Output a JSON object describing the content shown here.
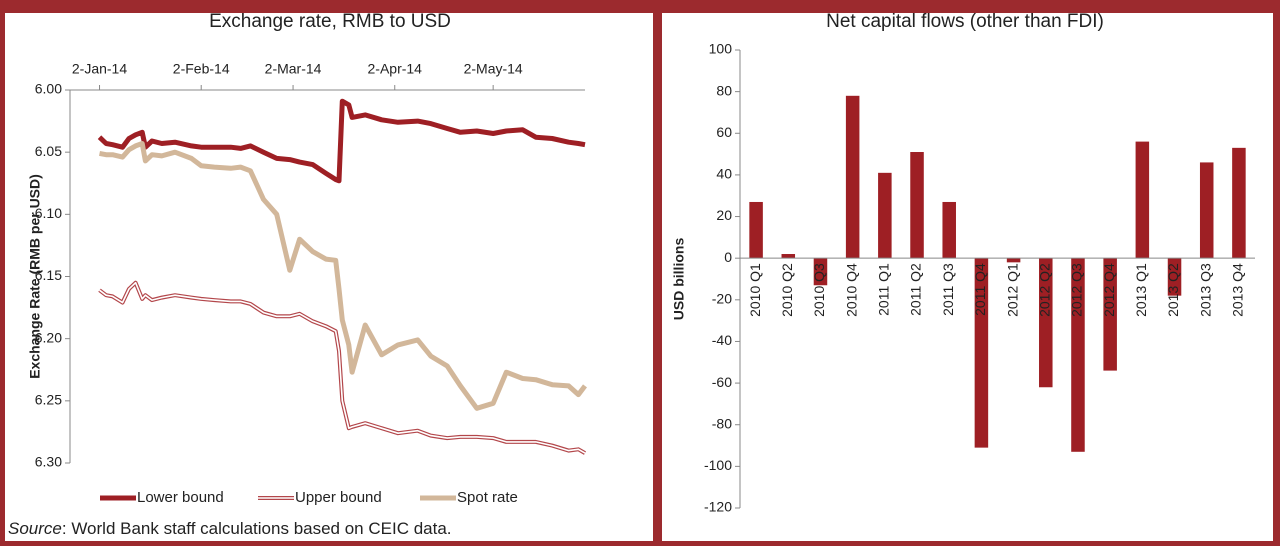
{
  "chart_data": [
    {
      "type": "line",
      "title": "Exchange rate, RMB to USD",
      "y_label": "Exchange Rate (RMB per USD)",
      "x": [
        "2014-01-02",
        "2014-01-04",
        "2014-01-06",
        "2014-01-09",
        "2014-01-11",
        "2014-01-13",
        "2014-01-15",
        "2014-01-16",
        "2014-01-18",
        "2014-01-21",
        "2014-01-25",
        "2014-01-30",
        "2014-02-02",
        "2014-02-06",
        "2014-02-11",
        "2014-02-14",
        "2014-02-17",
        "2014-02-21",
        "2014-02-25",
        "2014-03-01",
        "2014-03-04",
        "2014-03-08",
        "2014-03-12",
        "2014-03-15",
        "2014-03-16",
        "2014-03-17",
        "2014-03-19",
        "2014-03-20",
        "2014-03-24",
        "2014-03-29",
        "2014-04-03",
        "2014-04-09",
        "2014-04-13",
        "2014-04-18",
        "2014-04-22",
        "2014-04-27",
        "2014-05-02",
        "2014-05-06",
        "2014-05-11",
        "2014-05-15",
        "2014-05-20",
        "2014-05-25",
        "2014-05-28",
        "2014-05-30"
      ],
      "xlim": [
        "2013-12-24",
        "2014-05-30"
      ],
      "xticks": [
        {
          "value": "2014-01-02",
          "label": "2-Jan-14"
        },
        {
          "value": "2014-02-02",
          "label": "2-Feb-14"
        },
        {
          "value": "2014-03-02",
          "label": "2-Mar-14"
        },
        {
          "value": "2014-04-02",
          "label": "2-Apr-14"
        },
        {
          "value": "2014-05-02",
          "label": "2-May-14"
        }
      ],
      "x_axis_position": "top",
      "ylim": [
        6.0,
        6.3
      ],
      "y_inverted": true,
      "yticks": [
        {
          "value": 6,
          "label": "6.00"
        },
        6.05,
        {
          "value": 6.1,
          "label": "6.10"
        },
        6.15,
        {
          "value": 6.2,
          "label": "6.20"
        },
        6.25,
        {
          "value": 6.3,
          "label": "6.30"
        }
      ],
      "legend": "bottom",
      "series": [
        {
          "name": "Lower bound",
          "color": "#9e1f24",
          "line_style": "solid",
          "values": [
            6.038,
            6.043,
            6.044,
            6.046,
            6.039,
            6.036,
            6.034,
            6.046,
            6.041,
            6.043,
            6.042,
            6.045,
            6.046,
            6.046,
            6.046,
            6.047,
            6.045,
            6.05,
            6.055,
            6.056,
            6.058,
            6.06,
            6.067,
            6.072,
            6.073,
            6.009,
            6.012,
            6.022,
            6.02,
            6.024,
            6.026,
            6.025,
            6.027,
            6.031,
            6.034,
            6.033,
            6.035,
            6.033,
            6.032,
            6.038,
            6.039,
            6.042,
            6.043,
            6.044
          ]
        },
        {
          "name": "Upper bound",
          "color": "#b3474b",
          "line_style": "outline",
          "values": [
            6.161,
            6.165,
            6.166,
            6.171,
            6.16,
            6.155,
            6.168,
            6.165,
            6.169,
            6.167,
            6.165,
            6.167,
            6.168,
            6.169,
            6.17,
            6.17,
            6.172,
            6.179,
            6.182,
            6.182,
            6.18,
            6.186,
            6.19,
            6.194,
            6.21,
            6.25,
            6.272,
            6.271,
            6.268,
            6.272,
            6.276,
            6.274,
            6.278,
            6.28,
            6.279,
            6.279,
            6.28,
            6.283,
            6.283,
            6.283,
            6.286,
            6.29,
            6.289,
            6.292
          ]
        },
        {
          "name": "Spot rate",
          "color": "#d2b79a",
          "line_style": "solid",
          "values": [
            6.051,
            6.052,
            6.052,
            6.054,
            6.048,
            6.045,
            6.043,
            6.057,
            6.052,
            6.053,
            6.05,
            6.055,
            6.061,
            6.062,
            6.063,
            6.062,
            6.065,
            6.088,
            6.1,
            6.145,
            6.12,
            6.13,
            6.136,
            6.137,
            6.16,
            6.185,
            6.205,
            6.227,
            6.189,
            6.213,
            6.205,
            6.201,
            6.214,
            6.222,
            6.238,
            6.256,
            6.252,
            6.227,
            6.232,
            6.233,
            6.237,
            6.238,
            6.245,
            6.238
          ]
        }
      ],
      "source": {
        "label": "Source",
        "text": ": World Bank staff calculations based on CEIC data."
      }
    },
    {
      "type": "bar",
      "title": "Net capital flows (other than FDI)",
      "y_label": "USD billions",
      "categories": [
        "2010 Q1",
        "2010 Q2",
        "2010 Q3",
        "2010 Q4",
        "2011 Q1",
        "2011 Q2",
        "2011 Q3",
        "2011 Q4",
        "2012 Q1",
        "2012 Q2",
        "2012 Q3",
        "2012 Q4",
        "2013 Q1",
        "2013 Q2",
        "2013 Q3",
        "2013 Q4"
      ],
      "values": [
        27,
        2,
        -13,
        78,
        41,
        51,
        27,
        -91,
        -2,
        -62,
        -93,
        -54,
        56,
        -18,
        46,
        53
      ],
      "color": "#9e1f24",
      "ylim": [
        -120,
        100
      ],
      "yticks": [
        -120,
        -100,
        -80,
        -60,
        -40,
        -20,
        0,
        20,
        40,
        60,
        80,
        100
      ],
      "grid": false
    }
  ]
}
